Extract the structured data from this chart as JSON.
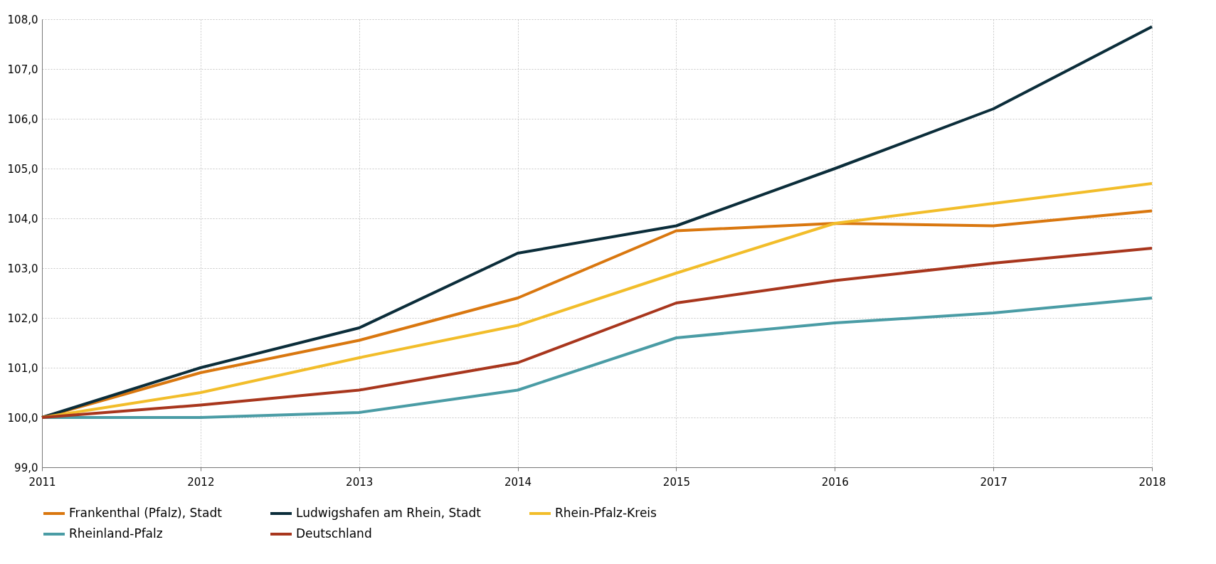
{
  "chart_data": {
    "type": "line",
    "x": [
      2011,
      2012,
      2013,
      2014,
      2015,
      2016,
      2017,
      2018
    ],
    "xlim": [
      2011,
      2018
    ],
    "xticks": [
      2011,
      2012,
      2013,
      2014,
      2015,
      2016,
      2017,
      2018
    ],
    "ylim": [
      99,
      108
    ],
    "yticks": [
      {
        "value": 99,
        "label": "99,0"
      },
      {
        "value": 100,
        "label": "100,0"
      },
      {
        "value": 101,
        "label": "101,0"
      },
      {
        "value": 102,
        "label": "102,0"
      },
      {
        "value": 103,
        "label": "103,0"
      },
      {
        "value": 104,
        "label": "104,0"
      },
      {
        "value": 105,
        "label": "105,0"
      },
      {
        "value": 106,
        "label": "106,0"
      },
      {
        "value": 107,
        "label": "107,0"
      },
      {
        "value": 108,
        "label": "108,0"
      }
    ],
    "grid": true,
    "legend": "bottom",
    "marker": "none",
    "line_style": "solid",
    "series": [
      {
        "name": "Frankenthal (Pfalz), Stadt",
        "color": "#d9770f",
        "values": [
          100,
          100.9,
          101.55,
          102.4,
          103.75,
          103.9,
          103.85,
          104.15
        ]
      },
      {
        "name": "Ludwigshafen am Rhein, Stadt",
        "color": "#0b2d3a",
        "values": [
          100,
          101.0,
          101.8,
          103.3,
          103.85,
          105.0,
          106.2,
          107.85
        ]
      },
      {
        "name": "Rhein-Pfalz-Kreis",
        "color": "#f2bd2a",
        "values": [
          100,
          100.5,
          101.2,
          101.85,
          102.9,
          103.9,
          104.3,
          104.7
        ]
      },
      {
        "name": "Rheinland-Pfalz",
        "color": "#4a9ca5",
        "values": [
          100,
          100.0,
          100.1,
          100.55,
          101.6,
          101.9,
          102.1,
          102.4
        ]
      },
      {
        "name": "Deutschland",
        "color": "#a8361d",
        "values": [
          100,
          100.25,
          100.55,
          101.1,
          102.3,
          102.75,
          103.1,
          103.4
        ]
      }
    ]
  }
}
